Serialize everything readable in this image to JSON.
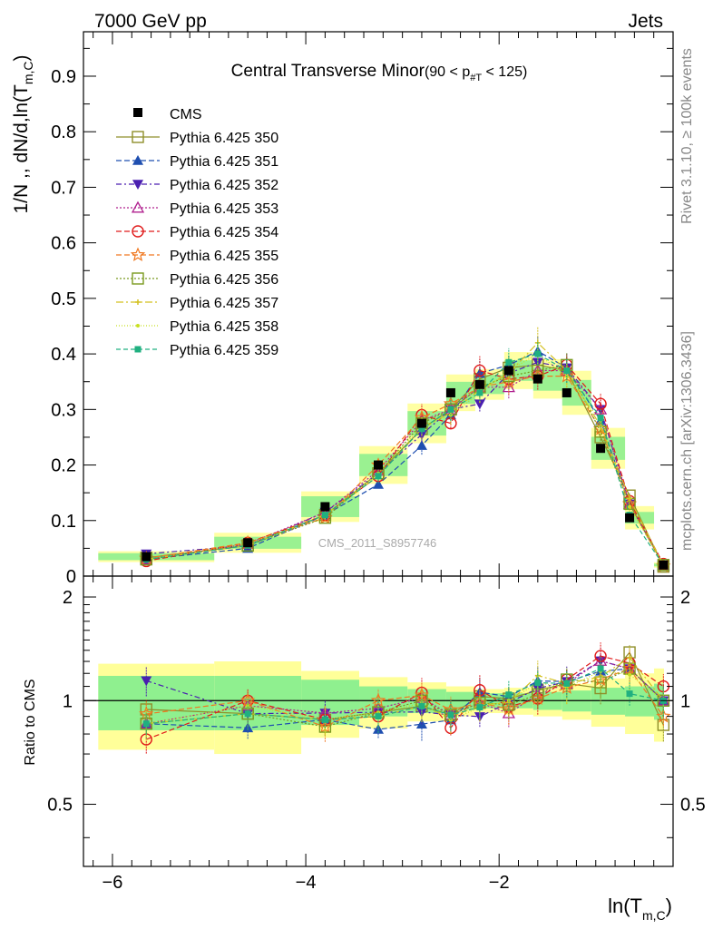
{
  "header": {
    "left": "7000 GeV pp",
    "right": "Jets"
  },
  "side": {
    "rivet": "Rivet 3.1.10, ≥ 100k events",
    "mcplots": "mcplots.cern.ch [arXiv:1306.3436]"
  },
  "chart_data": {
    "type": "scatter",
    "title_main": "Central Transverse Minor",
    "title_range_pre": "(90 < p",
    "title_range_sub": "#T",
    "title_range_post": " < 125)",
    "ylabel": "1/N ,, dN/d,ln(T",
    "ylabel_sub": "m,C",
    "ylabel_close": ")",
    "ratio_ylabel": "Ratio to CMS",
    "xlabel": "ln(T",
    "xlabel_sub": "m,C",
    "xlabel_close": ")",
    "watermark": "CMS_2011_S8957746",
    "xlim": [
      -6.3,
      -0.2
    ],
    "ylim_main": [
      0,
      0.98
    ],
    "ylim_ratio": [
      0.33,
      2.3
    ],
    "yticks_main": [
      "0",
      "0.1",
      "0.2",
      "0.3",
      "0.4",
      "0.5",
      "0.6",
      "0.7",
      "0.8",
      "0.9"
    ],
    "yticks_main_values": [
      0,
      0.1,
      0.2,
      0.3,
      0.4,
      0.5,
      0.6,
      0.7,
      0.8,
      0.9
    ],
    "yticks_ratio": [
      "0.5",
      "1",
      "2"
    ],
    "yticks_ratio_values": [
      0.5,
      1,
      2
    ],
    "xticks": [
      "−6",
      "−4",
      "−2"
    ],
    "xticks_values": [
      -6,
      -4,
      -2
    ],
    "x": [
      -5.65,
      -4.6,
      -3.8,
      -3.25,
      -2.8,
      -2.5,
      -2.2,
      -1.9,
      -1.6,
      -1.3,
      -0.95,
      -0.65,
      -0.3
    ],
    "bin_edges": [
      -6.25,
      -5.05,
      -4.15,
      -3.55,
      -3.05,
      -2.65,
      -2.35,
      -2.05,
      -1.75,
      -1.45,
      -1.15,
      -0.8,
      -0.5,
      -0.15
    ],
    "cms": [
      0.035,
      0.06,
      0.125,
      0.2,
      0.275,
      0.33,
      0.345,
      0.37,
      0.355,
      0.33,
      0.23,
      0.105,
      0.02
    ],
    "band_inner": [
      0.18,
      0.18,
      0.15,
      0.1,
      0.08,
      0.06,
      0.05,
      0.05,
      0.06,
      0.07,
      0.09,
      0.1,
      0.12
    ],
    "band_outer": [
      0.28,
      0.3,
      0.22,
      0.17,
      0.13,
      0.1,
      0.08,
      0.09,
      0.1,
      0.12,
      0.16,
      0.2,
      0.24
    ],
    "legend": {
      "cms_label": "CMS",
      "placement": "top-left"
    },
    "series": [
      {
        "name": "Pythia 6.425 350",
        "color": "#8f8f2a",
        "dash": "",
        "marker": "square-open",
        "values": [
          0.033,
          0.055,
          0.11,
          0.185,
          0.265,
          0.3,
          0.355,
          0.375,
          0.38,
          0.37,
          0.25,
          0.145,
          0.017
        ]
      },
      {
        "name": "Pythia 6.425 351",
        "color": "#1f4fb0",
        "dash": "6,3",
        "marker": "triangle-up",
        "values": [
          0.03,
          0.05,
          0.11,
          0.165,
          0.235,
          0.29,
          0.365,
          0.38,
          0.405,
          0.375,
          0.28,
          0.13,
          0.02
        ]
      },
      {
        "name": "Pythia 6.425 352",
        "color": "#4a1fb0",
        "dash": "6,3,2,3",
        "marker": "triangle-down",
        "values": [
          0.04,
          0.055,
          0.115,
          0.185,
          0.255,
          0.3,
          0.31,
          0.365,
          0.385,
          0.375,
          0.3,
          0.13,
          0.02
        ]
      },
      {
        "name": "Pythia 6.425 353",
        "color": "#b0208f",
        "dash": "2,2",
        "marker": "triangle-open",
        "values": [
          0.03,
          0.058,
          0.115,
          0.19,
          0.28,
          0.3,
          0.34,
          0.34,
          0.37,
          0.37,
          0.3,
          0.13,
          0.02
        ]
      },
      {
        "name": "Pythia 6.425 354",
        "color": "#e01a1a",
        "dash": "6,3",
        "marker": "circle-open",
        "values": [
          0.027,
          0.06,
          0.11,
          0.18,
          0.29,
          0.275,
          0.37,
          0.355,
          0.36,
          0.38,
          0.31,
          0.135,
          0.022
        ]
      },
      {
        "name": "Pythia 6.425 355",
        "color": "#f07820",
        "dash": "6,3",
        "marker": "star-open",
        "values": [
          0.032,
          0.06,
          0.105,
          0.2,
          0.285,
          0.31,
          0.34,
          0.35,
          0.36,
          0.36,
          0.265,
          0.13,
          0.018
        ]
      },
      {
        "name": "Pythia 6.425 356",
        "color": "#7a9a20",
        "dash": "2,2",
        "marker": "square-open",
        "values": [
          0.03,
          0.055,
          0.105,
          0.185,
          0.275,
          0.3,
          0.34,
          0.36,
          0.37,
          0.38,
          0.26,
          0.13,
          0.02
        ]
      },
      {
        "name": "Pythia 6.425 357",
        "color": "#d4c020",
        "dash": "8,3,2,3",
        "marker": "small-cross",
        "values": [
          0.03,
          0.055,
          0.11,
          0.18,
          0.265,
          0.295,
          0.335,
          0.365,
          0.42,
          0.37,
          0.27,
          0.14,
          0.02
        ]
      },
      {
        "name": "Pythia 6.425 358",
        "color": "#c8e020",
        "dash": "1,2",
        "marker": "small-dot",
        "values": [
          0.03,
          0.058,
          0.11,
          0.185,
          0.27,
          0.29,
          0.33,
          0.37,
          0.4,
          0.36,
          0.28,
          0.125,
          0.02
        ]
      },
      {
        "name": "Pythia 6.425 359",
        "color": "#20b080",
        "dash": "5,3",
        "marker": "square-small",
        "values": [
          0.03,
          0.055,
          0.11,
          0.18,
          0.265,
          0.3,
          0.33,
          0.385,
          0.4,
          0.37,
          0.285,
          0.11,
          0.02
        ]
      }
    ]
  }
}
